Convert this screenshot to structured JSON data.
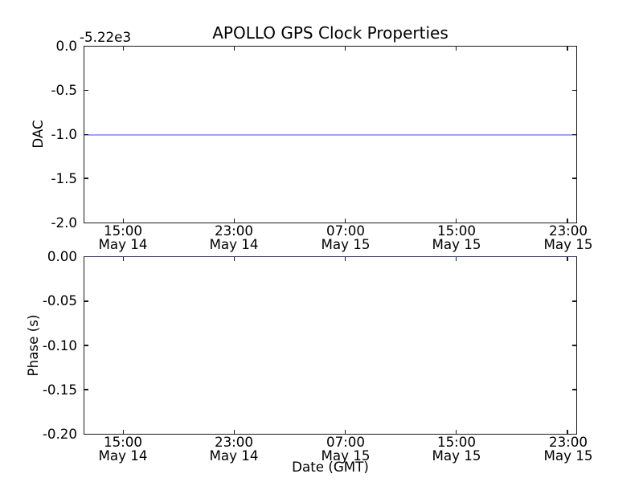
{
  "figure": {
    "title": "APOLLO GPS Clock Properties",
    "xlabel": "Date (GMT)",
    "colors": {
      "data_line": "#9fa4f0",
      "data_line_on_spine": "#31315e",
      "spine": "#1a1a1a",
      "background": "#ffffff",
      "text": "#000000"
    }
  },
  "top_plot": {
    "ylabel": "DAC",
    "offset_label": "-5.22e3",
    "yticks": [
      "0.0",
      "-0.5",
      "-1.0",
      "-1.5",
      "-2.0"
    ]
  },
  "bottom_plot": {
    "ylabel": "Phase (s)",
    "yticks": [
      "0.00",
      "-0.05",
      "-0.10",
      "-0.15",
      "-0.20"
    ]
  },
  "xticks": [
    {
      "time": "15:00",
      "date": "May 14"
    },
    {
      "time": "23:00",
      "date": "May 14"
    },
    {
      "time": "07:00",
      "date": "May 15"
    },
    {
      "time": "15:00",
      "date": "May 15"
    },
    {
      "time": "23:00",
      "date": "May 15"
    }
  ],
  "chart_data": [
    {
      "type": "line",
      "title": "APOLLO GPS Clock Properties",
      "ylabel": "DAC",
      "y_offset_label": "-5.22e3",
      "ylim": [
        -2.0,
        0.0
      ],
      "ytick_labels": [
        "0.0",
        "-0.5",
        "-1.0",
        "-1.5",
        "-2.0"
      ],
      "xtick_labels": [
        "15:00 May 14",
        "23:00 May 14",
        "07:00 May 15",
        "15:00 May 15",
        "23:00 May 15"
      ],
      "grid": false,
      "legend": false,
      "series": [
        {
          "name": "DAC",
          "color": "blue",
          "shape": "constant horizontal line spanning full x-range",
          "value_on_axis": -1.0,
          "value_with_offset": -5221.0
        }
      ]
    },
    {
      "type": "line",
      "title": "",
      "ylabel": "Phase (s)",
      "xlabel": "Date (GMT)",
      "ylim": [
        -0.2,
        0.0
      ],
      "ytick_labels": [
        "0.00",
        "-0.05",
        "-0.10",
        "-0.15",
        "-0.20"
      ],
      "xtick_labels": [
        "15:00 May 14",
        "23:00 May 14",
        "07:00 May 15",
        "15:00 May 15",
        "23:00 May 15"
      ],
      "grid": false,
      "legend": false,
      "series": [
        {
          "name": "Phase",
          "color": "blue",
          "shape": "constant horizontal line coinciding with top spine",
          "value_on_axis": 0.0
        }
      ]
    }
  ]
}
